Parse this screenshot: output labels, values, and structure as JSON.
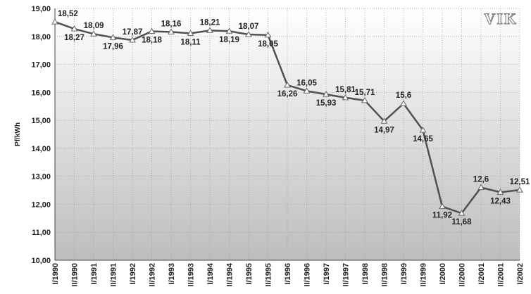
{
  "chart_data": {
    "type": "line",
    "y_label": "Pf/kWh",
    "logo": "VIK",
    "categories": [
      "I/1990",
      "II/1990",
      "I/1991",
      "II/1991",
      "I/1992",
      "II/1992",
      "I/1993",
      "II/1993",
      "I/1994",
      "II/1994",
      "I/1995",
      "II/1995",
      "I/1996",
      "II/1996",
      "I/1997",
      "II/1997",
      "I/1998",
      "II/1998",
      "I/1999",
      "II/1999",
      "I/2000",
      "II/2000",
      "I/2001",
      "II/2001",
      "I/2002"
    ],
    "series": [
      {
        "name": "Pf/kWh",
        "color": "#505050",
        "values": [
          18.52,
          18.27,
          18.09,
          17.96,
          17.87,
          18.18,
          18.16,
          18.11,
          18.21,
          18.19,
          18.07,
          18.05,
          16.26,
          16.05,
          15.93,
          15.81,
          15.71,
          14.97,
          15.6,
          14.65,
          11.92,
          11.68,
          12.6,
          12.43,
          12.51
        ],
        "value_labels": [
          "18,52",
          "18,27",
          "18,09",
          "17,96",
          "17,87",
          "18,18",
          "18,16",
          "18,11",
          "18,21",
          "18,19",
          "18,07",
          "18,05",
          "16,26",
          "16,05",
          "15,93",
          "15,81",
          "15,71",
          "14,97",
          "15,6",
          "14,65",
          "11,92",
          "11,68",
          "12,6",
          "12,43",
          "12,51"
        ]
      }
    ],
    "ylim": [
      10,
      19
    ],
    "yticks": [
      {
        "value": 10,
        "label": "10,00"
      },
      {
        "value": 11,
        "label": "11,00"
      },
      {
        "value": 12,
        "label": "12,00"
      },
      {
        "value": 13,
        "label": "13,00"
      },
      {
        "value": 14,
        "label": "14,00"
      },
      {
        "value": 15,
        "label": "15,00"
      },
      {
        "value": 16,
        "label": "16,00"
      },
      {
        "value": 17,
        "label": "17,00"
      },
      {
        "value": 18,
        "label": "18,00"
      },
      {
        "value": 19,
        "label": "19,00"
      }
    ],
    "grid": true
  }
}
